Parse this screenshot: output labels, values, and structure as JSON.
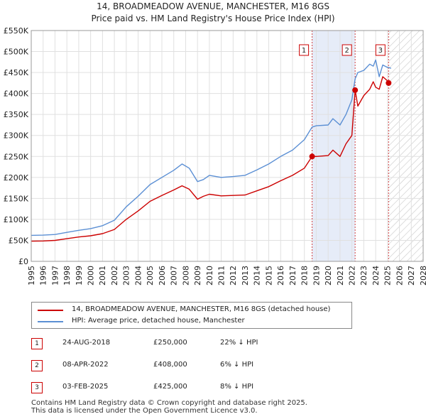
{
  "chart_data": {
    "type": "line",
    "title": "14, BROADMEADOW AVENUE, MANCHESTER, M16 8GS",
    "subtitle": "Price paid vs. HM Land Registry's House Price Index (HPI)",
    "xlim": [
      1995,
      2028
    ],
    "ylim": [
      0,
      550000
    ],
    "y_ticks": [
      0,
      50000,
      100000,
      150000,
      200000,
      250000,
      300000,
      350000,
      400000,
      450000,
      500000,
      550000
    ],
    "y_tick_labels": [
      "£0",
      "£50K",
      "£100K",
      "£150K",
      "£200K",
      "£250K",
      "£300K",
      "£350K",
      "£400K",
      "£450K",
      "£500K",
      "£550K"
    ],
    "x_ticks": [
      1995,
      1996,
      1997,
      1998,
      1999,
      2000,
      2001,
      2002,
      2003,
      2004,
      2005,
      2006,
      2007,
      2008,
      2009,
      2010,
      2011,
      2012,
      2013,
      2014,
      2015,
      2016,
      2017,
      2018,
      2019,
      2020,
      2021,
      2022,
      2023,
      2024,
      2025,
      2026,
      2027,
      2028
    ],
    "x_tick_labels": [
      "1995",
      "1996",
      "1997",
      "1998",
      "1999",
      "2000",
      "2001",
      "2002",
      "2003",
      "2004",
      "2005",
      "2006",
      "2007",
      "2008",
      "2009",
      "2010",
      "2011",
      "2012",
      "2013",
      "2014",
      "2015",
      "2016",
      "2017",
      "2018",
      "2019",
      "2020",
      "2021",
      "2022",
      "2023",
      "2024",
      "2025",
      "2026",
      "2027",
      "2028"
    ],
    "grid": true,
    "shaded_period": [
      2018.65,
      2022.27
    ],
    "forecast_start": 2025.09,
    "series": [
      {
        "name": "14, BROADMEADOW AVENUE, MANCHESTER, M16 8GS (detached house)",
        "color": "#cc0000",
        "x": [
          1995,
          1996,
          1997,
          1998,
          1999,
          2000,
          2001,
          2002,
          2003,
          2004,
          2005,
          2006,
          2007,
          2007.7,
          2008.3,
          2009,
          2009.5,
          2010,
          2011,
          2012,
          2013,
          2014,
          2015,
          2016,
          2017,
          2018,
          2018.65,
          2019,
          2020,
          2020.4,
          2021,
          2021.5,
          2022,
          2022.27,
          2022.5,
          2023,
          2023.5,
          2023.8,
          2024,
          2024.3,
          2024.6,
          2025,
          2025.09,
          2025.3
        ],
        "values": [
          48000,
          48500,
          50000,
          54000,
          58000,
          61000,
          66000,
          76000,
          100000,
          120000,
          143000,
          157000,
          170000,
          180000,
          172000,
          148000,
          155000,
          160000,
          156000,
          157000,
          158000,
          168000,
          178000,
          192000,
          205000,
          222000,
          250000,
          250000,
          252000,
          265000,
          250000,
          280000,
          300000,
          408000,
          370000,
          395000,
          410000,
          428000,
          415000,
          410000,
          440000,
          430000,
          425000,
          422000
        ]
      },
      {
        "name": "HPI: Average price, detached house, Manchester",
        "color": "#5b8fd4",
        "x": [
          1995,
          1996,
          1997,
          1998,
          1999,
          2000,
          2001,
          2002,
          2003,
          2004,
          2005,
          2006,
          2007,
          2007.7,
          2008.3,
          2009,
          2009.5,
          2010,
          2011,
          2012,
          2013,
          2014,
          2015,
          2016,
          2017,
          2018,
          2018.65,
          2019,
          2020,
          2020.4,
          2021,
          2021.5,
          2022,
          2022.27,
          2022.5,
          2023,
          2023.5,
          2023.8,
          2024,
          2024.3,
          2024.6,
          2025,
          2025.09,
          2025.3
        ],
        "values": [
          62000,
          62500,
          64000,
          69000,
          74000,
          78000,
          85000,
          98000,
          130000,
          155000,
          183000,
          200000,
          217000,
          232000,
          222000,
          190000,
          195000,
          205000,
          200000,
          202000,
          205000,
          218000,
          232000,
          250000,
          265000,
          290000,
          320000,
          323000,
          325000,
          340000,
          325000,
          350000,
          385000,
          435000,
          450000,
          455000,
          470000,
          465000,
          480000,
          440000,
          468000,
          462000,
          462000,
          460000
        ]
      }
    ],
    "markers": [
      {
        "label": "1",
        "x": 2018.65,
        "value": 250000
      },
      {
        "label": "2",
        "x": 2022.27,
        "value": 408000
      },
      {
        "label": "3",
        "x": 2025.09,
        "value": 425000
      }
    ]
  },
  "legend": {
    "property_label": "14, BROADMEADOW AVENUE, MANCHESTER, M16 8GS (detached house)",
    "hpi_label": "HPI: Average price, detached house, Manchester"
  },
  "sales": [
    {
      "num": "1",
      "date": "24-AUG-2018",
      "price": "£250,000",
      "hpi": "22% ↓ HPI"
    },
    {
      "num": "2",
      "date": "08-APR-2022",
      "price": "£408,000",
      "hpi": "6% ↓ HPI"
    },
    {
      "num": "3",
      "date": "03-FEB-2025",
      "price": "£425,000",
      "hpi": "8% ↓ HPI"
    }
  ],
  "footer": {
    "line1": "Contains HM Land Registry data © Crown copyright and database right 2025.",
    "line2": "This data is licensed under the Open Government Licence v3.0."
  },
  "colors": {
    "property": "#cc0000",
    "hpi": "#5b8fd4",
    "shade": "#e6ecf8"
  }
}
